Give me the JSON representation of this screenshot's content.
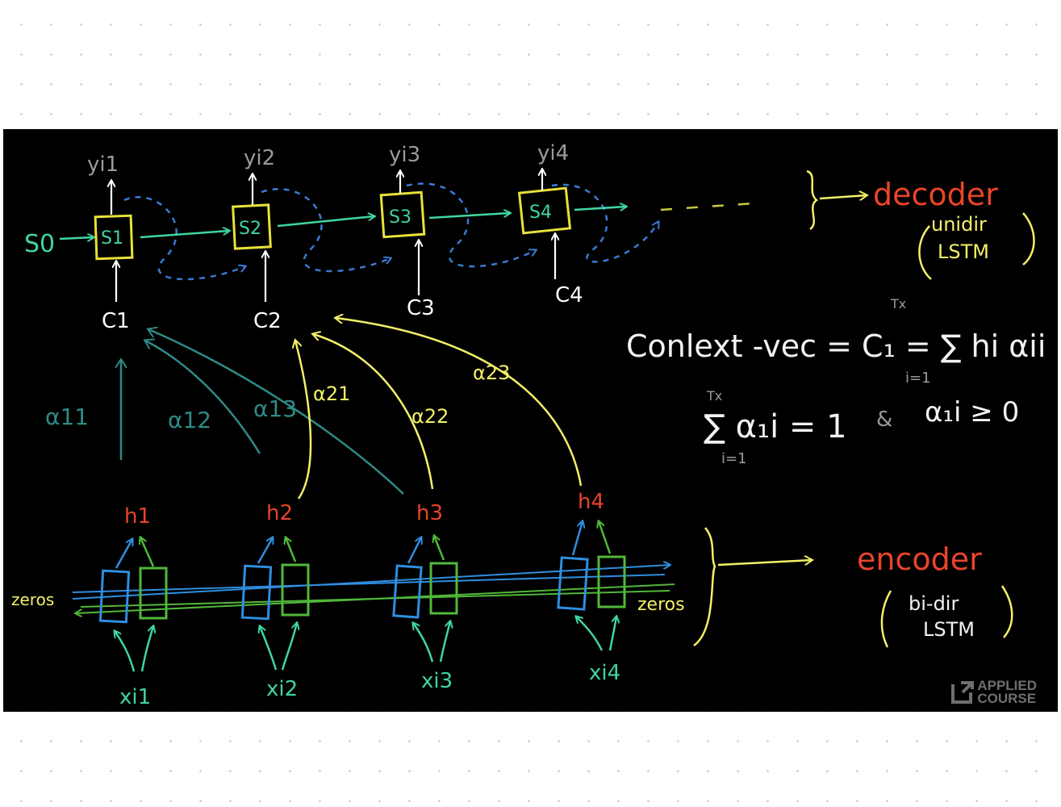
{
  "decoder": {
    "initial_state": "S0",
    "outputs": [
      "yi1",
      "yi2",
      "yi3",
      "yi4"
    ],
    "states": [
      "S1",
      "S2",
      "S3",
      "S4"
    ],
    "contexts": [
      "C1",
      "C2",
      "C3",
      "C4"
    ],
    "label": "decoder",
    "type_line1": "unidir",
    "type_line2": "LSTM"
  },
  "encoder": {
    "hidden": [
      "h1",
      "h2",
      "h3",
      "h4"
    ],
    "inputs": [
      "xi1",
      "xi2",
      "xi3",
      "xi4"
    ],
    "left_pad": "zeros",
    "right_pad": "zeros",
    "label": "encoder",
    "type_line1": "bi-dir",
    "type_line2": "LSTM"
  },
  "attention": {
    "alpha_1": [
      "α11",
      "α12",
      "α13"
    ],
    "alpha_2": [
      "α21",
      "α22",
      "α23"
    ]
  },
  "formulas": {
    "context_vec": "Conlext -vec = C₁ = ∑ hi αii",
    "sum_upper": "Tx",
    "sum_lower": "i=1",
    "constraint": "∑ α₁i = 1",
    "and_sign": "&",
    "nonneg": "α₁i ≥ 0"
  },
  "colors": {
    "decoder_box": "#e8e13a",
    "decoder_arrow": "#3fd6a0",
    "dashed": "#3a7bd5",
    "context_label": "#ffffff",
    "alpha_teal": "#2f8a86",
    "alpha_yellow": "#f3f068",
    "hidden": "#e8442a",
    "encoder_blue": "#2f8ee0",
    "encoder_green": "#52b83a",
    "input_teal": "#3fd6a0",
    "title_red": "#e8442a",
    "note_white": "#f2f2f2"
  },
  "watermark": {
    "line1": "APPLIED",
    "line2": "COURSE"
  }
}
